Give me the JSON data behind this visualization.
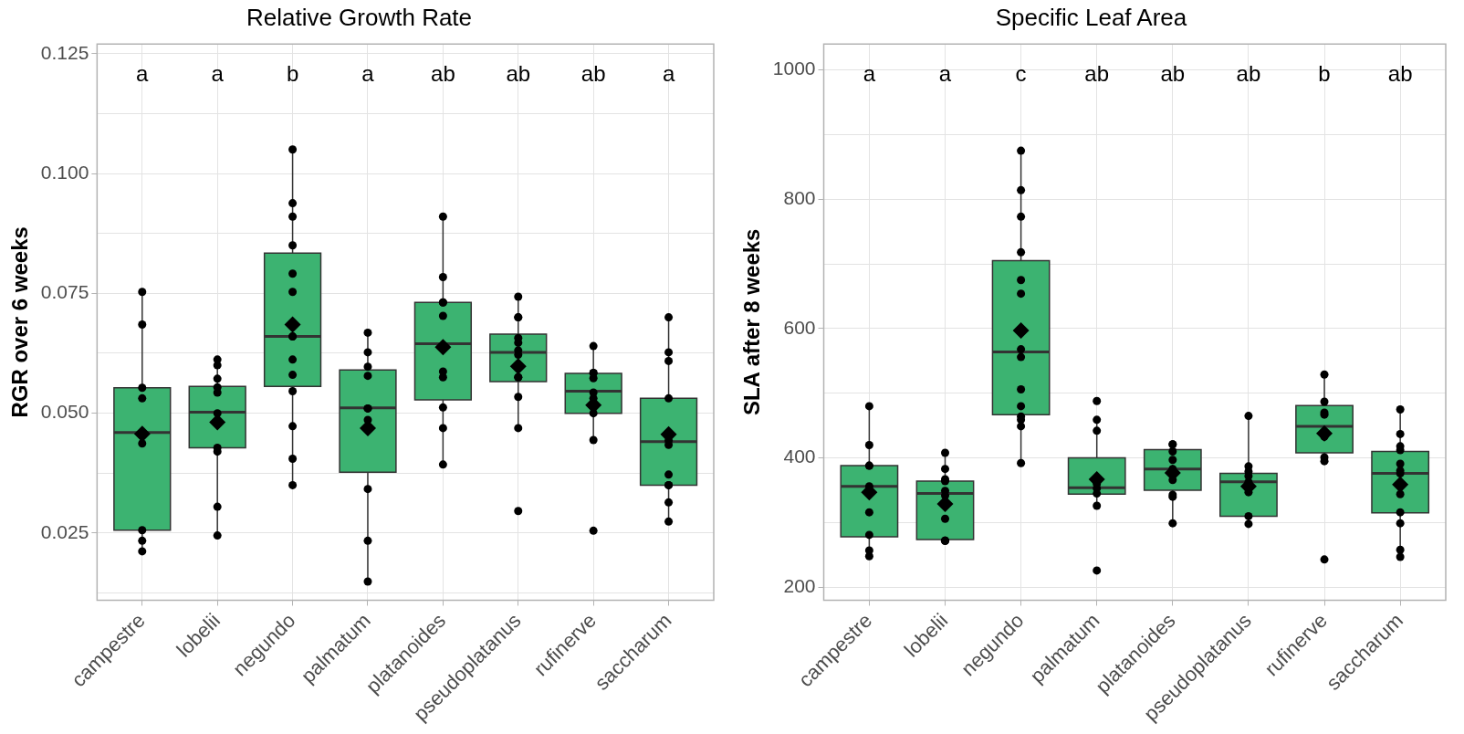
{
  "chart_data": [
    {
      "type": "box",
      "title": "Relative Growth Rate",
      "ylabel": "RGR over 6 weeks",
      "categories": [
        "campestre",
        "lobelii",
        "negundo",
        "palmatum",
        "platanoides",
        "pseudoplatanus",
        "rufinerve",
        "saccharum"
      ],
      "ylim": [
        0.011,
        0.127
      ],
      "yticks": [
        {
          "value": 0.0125,
          "label": null
        },
        0.025,
        {
          "value": 0.0375,
          "label": null
        },
        {
          "value": 0.05,
          "label": "0.050"
        },
        {
          "value": 0.0625,
          "label": null
        },
        0.075,
        {
          "value": 0.0875,
          "label": null
        },
        {
          "value": 0.1,
          "label": "0.100"
        },
        {
          "value": 0.1125,
          "label": null
        },
        0.125
      ],
      "grid": true,
      "annotations": [
        "a",
        "a",
        "b",
        "a",
        "ab",
        "ab",
        "ab",
        "a"
      ],
      "series": [
        {
          "type": "box",
          "color": "#3cb371",
          "boxes": [
            {
              "low": 0.0219,
              "q1": 0.0256,
              "median": 0.046,
              "q3": 0.0553,
              "high": 0.0752,
              "mean": 0.0457
            },
            {
              "low": 0.0249,
              "q1": 0.0428,
              "median": 0.0502,
              "q3": 0.0556,
              "high": 0.0612,
              "mean": 0.0481
            },
            {
              "low": 0.0353,
              "q1": 0.0556,
              "median": 0.066,
              "q3": 0.0834,
              "high": 0.105,
              "mean": 0.0685
            },
            {
              "low": 0.0152,
              "q1": 0.0377,
              "median": 0.0511,
              "q3": 0.059,
              "high": 0.0668,
              "mean": 0.0469
            },
            {
              "low": 0.0394,
              "q1": 0.0528,
              "median": 0.0645,
              "q3": 0.0731,
              "high": 0.091,
              "mean": 0.0638
            },
            {
              "low": 0.0473,
              "q1": 0.0566,
              "median": 0.0627,
              "q3": 0.0665,
              "high": 0.0743,
              "mean": 0.0598
            },
            {
              "low": 0.0444,
              "q1": 0.05,
              "median": 0.0546,
              "q3": 0.0583,
              "high": 0.0639,
              "mean": 0.0517
            },
            {
              "low": 0.0279,
              "q1": 0.035,
              "median": 0.0441,
              "q3": 0.0531,
              "high": 0.07,
              "mean": 0.0456
            }
          ]
        },
        {
          "type": "scatter",
          "color": "#000000",
          "marker": "circle",
          "x": [
            "campestre",
            "campestre",
            "campestre",
            "campestre",
            "campestre",
            "campestre",
            "campestre",
            "campestre",
            "lobelii",
            "lobelii",
            "lobelii",
            "lobelii",
            "lobelii",
            "lobelii",
            "lobelii",
            "lobelii",
            "lobelii",
            "lobelii",
            "negundo",
            "negundo",
            "negundo",
            "negundo",
            "negundo",
            "negundo",
            "negundo",
            "negundo",
            "negundo",
            "negundo",
            "negundo",
            "negundo",
            "negundo",
            "negundo",
            "palmatum",
            "palmatum",
            "palmatum",
            "palmatum",
            "palmatum",
            "palmatum",
            "palmatum",
            "palmatum",
            "palmatum",
            "palmatum",
            "platanoides",
            "platanoides",
            "platanoides",
            "platanoides",
            "platanoides",
            "platanoides",
            "platanoides",
            "platanoides",
            "platanoides",
            "platanoides",
            "pseudoplatanus",
            "pseudoplatanus",
            "pseudoplatanus",
            "pseudoplatanus",
            "pseudoplatanus",
            "pseudoplatanus",
            "pseudoplatanus",
            "pseudoplatanus",
            "pseudoplatanus",
            "pseudoplatanus",
            "pseudoplatanus",
            "pseudoplatanus",
            "rufinerve",
            "rufinerve",
            "rufinerve",
            "rufinerve",
            "rufinerve",
            "rufinerve",
            "rufinerve",
            "rufinerve",
            "rufinerve",
            "saccharum",
            "saccharum",
            "saccharum",
            "saccharum",
            "saccharum",
            "saccharum",
            "saccharum",
            "saccharum",
            "saccharum",
            "saccharum",
            "saccharum"
          ],
          "values": [
            0.0753,
            0.0685,
            0.0553,
            0.0531,
            0.0437,
            0.0256,
            0.0234,
            0.0212,
            0.0612,
            0.06,
            0.0572,
            0.0554,
            0.0543,
            0.05,
            0.0428,
            0.042,
            0.0305,
            0.0245,
            0.105,
            0.0938,
            0.091,
            0.085,
            0.0791,
            0.0753,
            0.066,
            0.066,
            0.0612,
            0.058,
            0.0546,
            0.0473,
            0.0405,
            0.035,
            0.0668,
            0.0627,
            0.0597,
            0.0578,
            0.051,
            0.051,
            0.0486,
            0.0342,
            0.0234,
            0.0149,
            0.091,
            0.0784,
            0.0731,
            0.0731,
            0.0703,
            0.0587,
            0.0575,
            0.0512,
            0.0469,
            0.0393,
            0.0743,
            0.07,
            0.07,
            0.0657,
            0.0647,
            0.0631,
            0.0622,
            0.0575,
            0.0575,
            0.0534,
            0.0469,
            0.0296,
            0.064,
            0.0584,
            0.0584,
            0.0573,
            0.0543,
            0.0531,
            0.05,
            0.0444,
            0.0255,
            0.07,
            0.0627,
            0.0609,
            0.0531,
            0.0443,
            0.0434,
            0.0372,
            0.035,
            0.035,
            0.0314,
            0.0274
          ]
        }
      ]
    },
    {
      "type": "box",
      "title": "Specific Leaf Area",
      "ylabel": "SLA after 8 weeks",
      "categories": [
        "campestre",
        "lobelii",
        "negundo",
        "palmatum",
        "platanoides",
        "pseudoplatanus",
        "rufinerve",
        "saccharum"
      ],
      "ylim": [
        180,
        1040
      ],
      "yticks": [
        200,
        {
          "value": 300,
          "label": null
        },
        400,
        {
          "value": 500,
          "label": null
        },
        600,
        {
          "value": 700,
          "label": null
        },
        800,
        {
          "value": 900,
          "label": null
        },
        1000
      ],
      "grid": true,
      "annotations": [
        "a",
        "a",
        "c",
        "ab",
        "ab",
        "ab",
        "b",
        "ab"
      ],
      "series": [
        {
          "type": "box",
          "color": "#3cb371",
          "boxes": [
            {
              "low": 248,
              "q1": 278,
              "median": 356,
              "q3": 388,
              "high": 480,
              "mean": 347
            },
            {
              "low": 271,
              "q1": 274,
              "median": 345,
              "q3": 364,
              "high": 408,
              "mean": 329
            },
            {
              "low": 393,
              "q1": 467,
              "median": 564,
              "q3": 705,
              "high": 875,
              "mean": 597
            },
            {
              "low": 327,
              "q1": 344,
              "median": 354,
              "q3": 400,
              "high": 458,
              "mean": 367
            },
            {
              "low": 300,
              "q1": 350,
              "median": 383,
              "q3": 413,
              "high": 421,
              "mean": 377
            },
            {
              "low": 298,
              "q1": 310,
              "median": 363,
              "q3": 376,
              "high": 465,
              "mean": 356
            },
            {
              "low": 396,
              "q1": 408,
              "median": 449,
              "q3": 481,
              "high": 529,
              "mean": 438
            },
            {
              "low": 247,
              "q1": 315,
              "median": 376,
              "q3": 410,
              "high": 475,
              "mean": 359
            }
          ]
        },
        {
          "type": "scatter",
          "color": "#000000",
          "marker": "circle",
          "x": [
            "campestre",
            "campestre",
            "campestre",
            "campestre",
            "campestre",
            "campestre",
            "campestre",
            "campestre",
            "campestre",
            "lobelii",
            "lobelii",
            "lobelii",
            "lobelii",
            "lobelii",
            "lobelii",
            "lobelii",
            "lobelii",
            "lobelii",
            "lobelii",
            "negundo",
            "negundo",
            "negundo",
            "negundo",
            "negundo",
            "negundo",
            "negundo",
            "negundo",
            "negundo",
            "negundo",
            "negundo",
            "negundo",
            "negundo",
            "negundo",
            "palmatum",
            "palmatum",
            "palmatum",
            "palmatum",
            "palmatum",
            "palmatum",
            "palmatum",
            "palmatum",
            "platanoides",
            "platanoides",
            "platanoides",
            "platanoides",
            "platanoides",
            "platanoides",
            "platanoides",
            "platanoides",
            "platanoides",
            "pseudoplatanus",
            "pseudoplatanus",
            "pseudoplatanus",
            "pseudoplatanus",
            "pseudoplatanus",
            "pseudoplatanus",
            "pseudoplatanus",
            "pseudoplatanus",
            "rufinerve",
            "rufinerve",
            "rufinerve",
            "rufinerve",
            "rufinerve",
            "rufinerve",
            "rufinerve",
            "rufinerve",
            "saccharum",
            "saccharum",
            "saccharum",
            "saccharum",
            "saccharum",
            "saccharum",
            "saccharum",
            "saccharum",
            "saccharum",
            "saccharum",
            "saccharum",
            "saccharum"
          ],
          "values": [
            480,
            420,
            388,
            388,
            356,
            316,
            281,
            257,
            248,
            408,
            383,
            367,
            364,
            349,
            342,
            306,
            272,
            272,
            272,
            875,
            814,
            773,
            718,
            675,
            654,
            568,
            556,
            506,
            480,
            464,
            459,
            449,
            392,
            488,
            459,
            442,
            353,
            345,
            326,
            226,
            360,
            421,
            421,
            410,
            397,
            383,
            366,
            340,
            343,
            299,
            465,
            387,
            379,
            363,
            372,
            347,
            310,
            298,
            529,
            487,
            467,
            470,
            433,
            401,
            395,
            243,
            475,
            437,
            418,
            412,
            391,
            376,
            380,
            344,
            316,
            299,
            258,
            247
          ]
        }
      ]
    }
  ]
}
